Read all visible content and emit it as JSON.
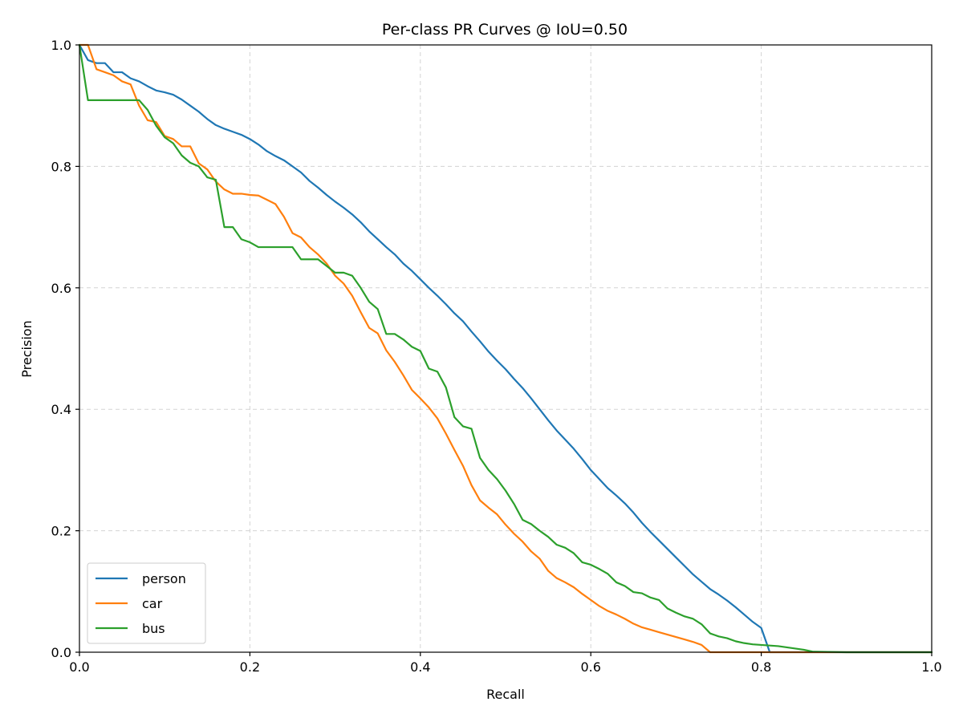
{
  "chart_data": {
    "type": "line",
    "title": "Per-class PR Curves @ IoU=0.50",
    "xlabel": "Recall",
    "ylabel": "Precision",
    "xlim": [
      0.0,
      1.0
    ],
    "ylim": [
      0.0,
      1.0
    ],
    "xticks": [
      "0.0",
      "0.2",
      "0.4",
      "0.6",
      "0.8",
      "1.0"
    ],
    "yticks": [
      "0.0",
      "0.2",
      "0.4",
      "0.6",
      "0.8",
      "1.0"
    ],
    "grid": true,
    "legend_position": "lower-left",
    "series": [
      {
        "name": "person",
        "color": "#1f77b4",
        "x": [
          0.0,
          0.01,
          0.02,
          0.03,
          0.04,
          0.05,
          0.06,
          0.07,
          0.08,
          0.09,
          0.1,
          0.11,
          0.12,
          0.13,
          0.14,
          0.15,
          0.16,
          0.17,
          0.18,
          0.19,
          0.2,
          0.21,
          0.22,
          0.23,
          0.24,
          0.25,
          0.26,
          0.27,
          0.28,
          0.29,
          0.3,
          0.31,
          0.32,
          0.33,
          0.34,
          0.35,
          0.36,
          0.37,
          0.38,
          0.39,
          0.4,
          0.41,
          0.42,
          0.43,
          0.44,
          0.45,
          0.46,
          0.47,
          0.48,
          0.49,
          0.5,
          0.51,
          0.52,
          0.53,
          0.54,
          0.55,
          0.56,
          0.57,
          0.58,
          0.59,
          0.6,
          0.61,
          0.62,
          0.63,
          0.64,
          0.65,
          0.66,
          0.67,
          0.68,
          0.69,
          0.7,
          0.71,
          0.72,
          0.73,
          0.74,
          0.75,
          0.76,
          0.77,
          0.78,
          0.79,
          0.8,
          0.81,
          0.82,
          0.85,
          0.9,
          1.0
        ],
        "y": [
          1.0,
          0.975,
          0.97,
          0.97,
          0.955,
          0.955,
          0.945,
          0.94,
          0.932,
          0.925,
          0.922,
          0.918,
          0.91,
          0.9,
          0.89,
          0.878,
          0.868,
          0.862,
          0.857,
          0.852,
          0.845,
          0.836,
          0.825,
          0.817,
          0.81,
          0.8,
          0.79,
          0.776,
          0.765,
          0.753,
          0.742,
          0.732,
          0.721,
          0.708,
          0.693,
          0.68,
          0.667,
          0.655,
          0.64,
          0.628,
          0.614,
          0.6,
          0.587,
          0.573,
          0.558,
          0.545,
          0.528,
          0.512,
          0.495,
          0.48,
          0.466,
          0.45,
          0.435,
          0.418,
          0.4,
          0.382,
          0.365,
          0.35,
          0.335,
          0.318,
          0.3,
          0.285,
          0.27,
          0.258,
          0.245,
          0.23,
          0.213,
          0.198,
          0.184,
          0.17,
          0.156,
          0.142,
          0.128,
          0.116,
          0.104,
          0.095,
          0.085,
          0.074,
          0.062,
          0.05,
          0.04,
          0.0,
          0.0,
          0.0,
          0.0,
          0.0
        ]
      },
      {
        "name": "car",
        "color": "#ff7f0e",
        "x": [
          0.0,
          0.01,
          0.02,
          0.03,
          0.04,
          0.05,
          0.06,
          0.07,
          0.08,
          0.09,
          0.1,
          0.11,
          0.12,
          0.13,
          0.14,
          0.15,
          0.16,
          0.17,
          0.18,
          0.19,
          0.2,
          0.21,
          0.22,
          0.23,
          0.24,
          0.25,
          0.26,
          0.27,
          0.28,
          0.29,
          0.3,
          0.31,
          0.32,
          0.33,
          0.34,
          0.35,
          0.36,
          0.37,
          0.38,
          0.39,
          0.4,
          0.41,
          0.42,
          0.43,
          0.44,
          0.45,
          0.46,
          0.47,
          0.48,
          0.49,
          0.5,
          0.51,
          0.52,
          0.53,
          0.54,
          0.55,
          0.56,
          0.57,
          0.58,
          0.59,
          0.6,
          0.61,
          0.62,
          0.63,
          0.64,
          0.65,
          0.66,
          0.67,
          0.68,
          0.69,
          0.7,
          0.71,
          0.72,
          0.73,
          0.74,
          0.75,
          0.8,
          0.85,
          0.9,
          1.0
        ],
        "y": [
          1.0,
          1.0,
          0.96,
          0.955,
          0.95,
          0.94,
          0.935,
          0.9,
          0.876,
          0.873,
          0.85,
          0.845,
          0.833,
          0.833,
          0.805,
          0.795,
          0.775,
          0.762,
          0.755,
          0.755,
          0.753,
          0.752,
          0.745,
          0.738,
          0.717,
          0.69,
          0.683,
          0.667,
          0.655,
          0.64,
          0.62,
          0.607,
          0.587,
          0.56,
          0.534,
          0.525,
          0.497,
          0.478,
          0.456,
          0.432,
          0.418,
          0.403,
          0.385,
          0.36,
          0.333,
          0.307,
          0.275,
          0.25,
          0.238,
          0.227,
          0.21,
          0.195,
          0.182,
          0.166,
          0.154,
          0.134,
          0.122,
          0.115,
          0.107,
          0.096,
          0.086,
          0.076,
          0.068,
          0.062,
          0.055,
          0.047,
          0.041,
          0.037,
          0.033,
          0.029,
          0.025,
          0.021,
          0.017,
          0.012,
          0.0,
          0.0,
          0.0,
          0.0,
          0.0,
          0.0
        ]
      },
      {
        "name": "bus",
        "color": "#2ca02c",
        "x": [
          0.0,
          0.01,
          0.02,
          0.03,
          0.04,
          0.05,
          0.06,
          0.07,
          0.08,
          0.09,
          0.1,
          0.11,
          0.12,
          0.13,
          0.14,
          0.15,
          0.16,
          0.17,
          0.18,
          0.19,
          0.2,
          0.21,
          0.22,
          0.23,
          0.24,
          0.25,
          0.26,
          0.27,
          0.28,
          0.29,
          0.3,
          0.31,
          0.32,
          0.33,
          0.34,
          0.35,
          0.36,
          0.37,
          0.38,
          0.39,
          0.4,
          0.41,
          0.42,
          0.43,
          0.44,
          0.45,
          0.46,
          0.47,
          0.48,
          0.49,
          0.5,
          0.51,
          0.52,
          0.53,
          0.54,
          0.55,
          0.56,
          0.57,
          0.58,
          0.59,
          0.6,
          0.61,
          0.62,
          0.63,
          0.64,
          0.65,
          0.66,
          0.67,
          0.68,
          0.69,
          0.7,
          0.71,
          0.72,
          0.73,
          0.74,
          0.75,
          0.76,
          0.77,
          0.78,
          0.79,
          0.8,
          0.81,
          0.82,
          0.83,
          0.84,
          0.85,
          0.86,
          0.9,
          1.0
        ],
        "y": [
          1.0,
          0.909,
          0.909,
          0.909,
          0.909,
          0.909,
          0.909,
          0.909,
          0.893,
          0.867,
          0.848,
          0.838,
          0.818,
          0.806,
          0.8,
          0.782,
          0.778,
          0.7,
          0.7,
          0.68,
          0.675,
          0.667,
          0.667,
          0.667,
          0.667,
          0.667,
          0.647,
          0.647,
          0.647,
          0.636,
          0.625,
          0.625,
          0.62,
          0.6,
          0.577,
          0.565,
          0.524,
          0.524,
          0.515,
          0.503,
          0.496,
          0.467,
          0.462,
          0.436,
          0.387,
          0.372,
          0.368,
          0.32,
          0.3,
          0.285,
          0.266,
          0.244,
          0.218,
          0.211,
          0.2,
          0.19,
          0.177,
          0.172,
          0.163,
          0.148,
          0.144,
          0.137,
          0.129,
          0.115,
          0.109,
          0.099,
          0.097,
          0.09,
          0.086,
          0.072,
          0.065,
          0.059,
          0.055,
          0.046,
          0.031,
          0.026,
          0.023,
          0.018,
          0.015,
          0.013,
          0.012,
          0.011,
          0.01,
          0.008,
          0.006,
          0.004,
          0.001,
          0.0,
          0.0
        ]
      }
    ]
  }
}
